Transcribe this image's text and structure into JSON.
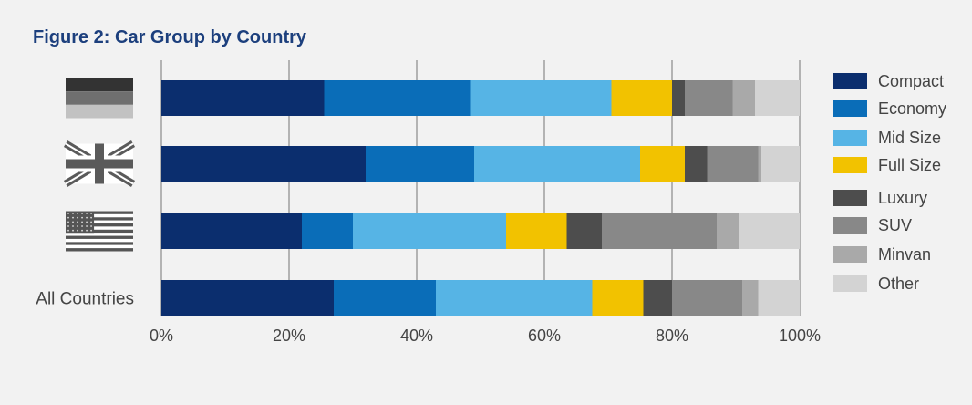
{
  "chart_data": {
    "type": "bar",
    "orientation": "horizontal",
    "stacked": true,
    "title": "Figure 2: Car Group by Country",
    "categories": [
      "Germany",
      "United Kingdom",
      "United States",
      "All Countries"
    ],
    "category_labels": [
      "",
      "",
      "",
      "All Countries"
    ],
    "category_icons": [
      "germany-flag-icon",
      "uk-flag-icon",
      "us-flag-icon",
      ""
    ],
    "xlim": [
      0,
      100
    ],
    "x_ticks": [
      "0%",
      "20%",
      "40%",
      "60%",
      "80%",
      "100%"
    ],
    "grid": true,
    "legend_position": "right",
    "series": [
      {
        "name": "Compact",
        "color": "#0b2e6e",
        "values": [
          25.5,
          32,
          22,
          27
        ]
      },
      {
        "name": "Economy",
        "color": "#0a6db8",
        "values": [
          23,
          17,
          8,
          16
        ]
      },
      {
        "name": "Mid Size",
        "color": "#56b4e5",
        "values": [
          22,
          26,
          24,
          24.5
        ]
      },
      {
        "name": "Full Size",
        "color": "#f2c200",
        "values": [
          9.5,
          7,
          9.5,
          8
        ]
      },
      {
        "name": "Luxury",
        "color": "#4d4d4d",
        "values": [
          2,
          3.5,
          5.5,
          4.5
        ]
      },
      {
        "name": "SUV",
        "color": "#888888",
        "values": [
          7.5,
          8,
          18,
          11
        ]
      },
      {
        "name": "Minvan",
        "color": "#a9a9a9",
        "values": [
          3.5,
          0.5,
          3.5,
          2.5
        ]
      },
      {
        "name": "Other",
        "color": "#d3d3d3",
        "values": [
          7,
          6,
          9.5,
          6.5
        ]
      }
    ]
  }
}
